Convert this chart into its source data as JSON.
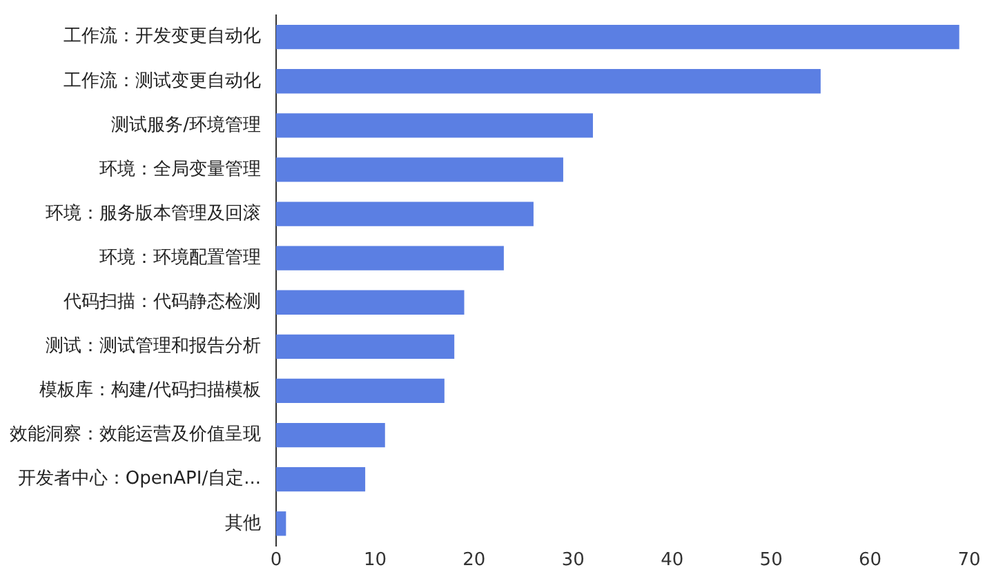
{
  "chart_data": {
    "type": "bar",
    "orientation": "horizontal",
    "categories": [
      "工作流：开发变更自动化",
      "工作流：测试变更自动化",
      "测试服务/环境管理",
      "环境：全局变量管理",
      "环境：服务版本管理及回滚",
      "环境：环境配置管理",
      "代码扫描：代码静态检测",
      "测试：测试管理和报告分析",
      "模板库：构建/代码扫描模板",
      "效能洞察：效能运营及价值呈现",
      "开发者中心：OpenAPI/自定...",
      "其他"
    ],
    "values": [
      69,
      55,
      32,
      29,
      26,
      23,
      19,
      18,
      17,
      11,
      9,
      1
    ],
    "color": "#5b7fe3",
    "xlim": [
      0,
      70
    ],
    "xticks": [
      0,
      10,
      20,
      30,
      40,
      50,
      60,
      70
    ],
    "grid": false
  }
}
